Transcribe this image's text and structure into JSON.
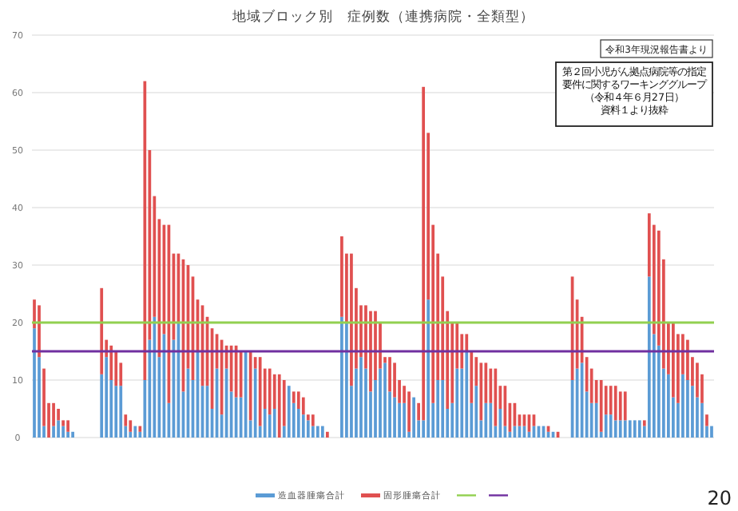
{
  "chart_data": {
    "type": "bar",
    "stacked": true,
    "title": "地域ブロック別　症例数（連携病院・全類型）",
    "categories": [
      null,
      null,
      null,
      null,
      null,
      null,
      null,
      null,
      null,
      null,
      null,
      null,
      null,
      null,
      null,
      null,
      null,
      null,
      null,
      null,
      null,
      null,
      null,
      null,
      null,
      null,
      null,
      null,
      null,
      null,
      null,
      null,
      null,
      null,
      null,
      null,
      null,
      null,
      null,
      null,
      null,
      null,
      null,
      null,
      null,
      null,
      null,
      null,
      null,
      null,
      null,
      null,
      null,
      null,
      null,
      null,
      null,
      null,
      null,
      null,
      null,
      null,
      null,
      null,
      null,
      null,
      null,
      null,
      null,
      null,
      null,
      null,
      null,
      null,
      null,
      null,
      null,
      null,
      null,
      null,
      null,
      null,
      null,
      null,
      null,
      null,
      null,
      null,
      null,
      null,
      null,
      null,
      null,
      null,
      null,
      null,
      null,
      null,
      null,
      null,
      null,
      null,
      null,
      null,
      null,
      null,
      null,
      null,
      null,
      null,
      null,
      null,
      null,
      null,
      null,
      null,
      null,
      null,
      null,
      null,
      null,
      null,
      null,
      null,
      null,
      null,
      null,
      null,
      null,
      null,
      null,
      null,
      null,
      null,
      null,
      null,
      null,
      null,
      null,
      null,
      null,
      null
    ],
    "series": [
      {
        "name": "造血器腫瘍合計",
        "color": "#5b9bd5",
        "values": [
          19,
          14,
          2,
          0,
          2,
          3,
          2,
          1,
          1,
          0,
          0,
          0,
          0,
          0,
          11,
          14,
          10,
          9,
          9,
          2,
          1,
          2,
          1,
          10,
          17,
          21,
          14,
          18,
          6,
          17,
          20,
          8,
          12,
          10,
          15,
          9,
          9,
          5,
          12,
          4,
          12,
          8,
          7,
          7,
          15,
          3,
          12,
          2,
          5,
          4,
          5,
          0,
          2,
          9,
          6,
          5,
          4,
          3,
          2,
          2,
          2,
          0,
          0,
          0,
          21,
          20,
          9,
          12,
          14,
          12,
          8,
          10,
          12,
          13,
          8,
          7,
          6,
          6,
          1,
          7,
          3,
          3,
          24,
          6,
          10,
          10,
          5,
          6,
          12,
          12,
          15,
          6,
          9,
          3,
          6,
          6,
          2,
          5,
          2,
          1,
          2,
          2,
          2,
          1,
          2,
          2,
          2,
          1,
          1,
          0,
          0,
          0,
          10,
          12,
          13,
          8,
          6,
          6,
          1,
          4,
          4,
          3,
          3,
          3,
          3,
          3,
          3,
          2,
          28,
          18,
          16,
          12,
          11,
          7,
          6,
          11,
          10,
          9,
          7,
          6,
          2,
          2
        ]
      },
      {
        "name": "固形腫瘍合計",
        "color": "#e05050",
        "values": [
          5,
          9,
          10,
          6,
          4,
          2,
          1,
          2,
          0,
          0,
          0,
          0,
          0,
          0,
          15,
          3,
          6,
          6,
          4,
          2,
          2,
          0,
          1,
          52,
          33,
          21,
          24,
          19,
          31,
          15,
          12,
          23,
          18,
          18,
          9,
          14,
          12,
          14,
          6,
          13,
          4,
          8,
          9,
          8,
          0,
          12,
          2,
          12,
          7,
          8,
          6,
          11,
          8,
          0,
          2,
          3,
          3,
          1,
          2,
          0,
          0,
          1,
          0,
          0,
          14,
          12,
          23,
          14,
          9,
          11,
          14,
          12,
          8,
          1,
          6,
          6,
          4,
          3,
          7,
          0,
          3,
          58,
          29,
          31,
          22,
          18,
          17,
          14,
          8,
          6,
          3,
          9,
          5,
          10,
          7,
          6,
          10,
          4,
          7,
          5,
          4,
          2,
          2,
          3,
          2,
          0,
          0,
          1,
          0,
          1,
          0,
          0,
          18,
          12,
          8,
          6,
          6,
          4,
          9,
          5,
          5,
          6,
          5,
          5,
          0,
          0,
          0,
          1,
          11,
          19,
          20,
          19,
          9,
          13,
          12,
          7,
          7,
          5,
          6,
          5,
          2,
          0
        ]
      }
    ],
    "ylim": [
      0,
      70
    ],
    "yticks": [
      0,
      10,
      20,
      30,
      40,
      50,
      60,
      70
    ],
    "grid": "y",
    "legend": "bottom",
    "ref_lines": [
      {
        "axis": "y",
        "value": 20,
        "color": "#92d050"
      },
      {
        "axis": "y",
        "value": 15,
        "color": "#7030a0"
      }
    ],
    "annotations": [
      "令和3年現況報告書より",
      "第２回小児がん拠点病院等の指定要件に関するワーキンググループ（令和４年６月27日）資料１より抜粋",
      "20"
    ]
  }
}
